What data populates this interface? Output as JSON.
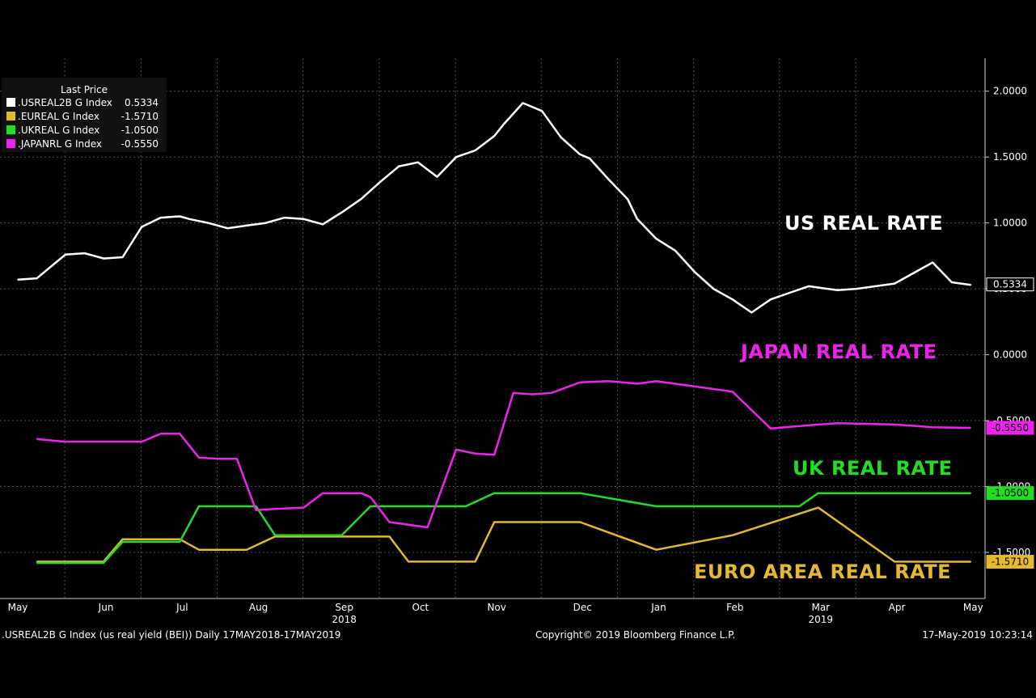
{
  "chart_data": {
    "type": "line",
    "legend_placement": "top-left",
    "grid": true,
    "ylim": [
      -1.85,
      2.25
    ],
    "y_ticks": [
      {
        "value": 2.0,
        "label": "2.0000"
      },
      {
        "value": 1.5,
        "label": "1.5000"
      },
      {
        "value": 1.0,
        "label": "1.0000"
      },
      {
        "value": 0.5,
        "label": "0.5000"
      },
      {
        "value": 0.0,
        "label": "0.0000"
      },
      {
        "value": -0.5,
        "label": "-0.5000"
      },
      {
        "value": -1.0,
        "label": "-1.0000"
      },
      {
        "value": -1.5,
        "label": "-1.5000"
      }
    ],
    "x_ticks": [
      {
        "value": 2018.33,
        "label": "May"
      },
      {
        "value": 2018.42,
        "label": "Jun"
      },
      {
        "value": 2018.5,
        "label": "Jul"
      },
      {
        "value": 2018.58,
        "label": "Aug"
      },
      {
        "value": 2018.67,
        "label": "Sep"
      },
      {
        "value": 2018.75,
        "label": "Oct"
      },
      {
        "value": 2018.83,
        "label": "Nov"
      },
      {
        "value": 2018.92,
        "label": "Dec"
      },
      {
        "value": 2019.0,
        "label": "Jan"
      },
      {
        "value": 2019.08,
        "label": "Feb"
      },
      {
        "value": 2019.17,
        "label": "Mar"
      },
      {
        "value": 2019.25,
        "label": "Apr"
      },
      {
        "value": 2019.33,
        "label": "May"
      }
    ],
    "year_labels": [
      {
        "value": 2018.67,
        "label": "2018"
      },
      {
        "value": 2019.17,
        "label": "2019"
      }
    ],
    "legend_title": "Last Price",
    "series": [
      {
        "name": ".USREAL2B G Index",
        "last_price": "0.5334",
        "color": "#ffffff",
        "annotation": "US REAL RATE",
        "x": [
          2018.33,
          2018.35,
          2018.37,
          2018.38,
          2018.4,
          2018.42,
          2018.44,
          2018.46,
          2018.48,
          2018.5,
          2018.51,
          2018.53,
          2018.55,
          2018.57,
          2018.59,
          2018.61,
          2018.63,
          2018.65,
          2018.67,
          2018.69,
          2018.71,
          2018.73,
          2018.75,
          2018.77,
          2018.79,
          2018.81,
          2018.83,
          2018.84,
          2018.86,
          2018.88,
          2018.9,
          2018.92,
          2018.93,
          2018.95,
          2018.97,
          2018.98,
          2019.0,
          2019.02,
          2019.04,
          2019.06,
          2019.08,
          2019.1,
          2019.12,
          2019.14,
          2019.16,
          2019.17,
          2019.19,
          2019.21,
          2019.23,
          2019.25,
          2019.27,
          2019.29,
          2019.31,
          2019.33
        ],
        "values": [
          0.57,
          0.58,
          0.7,
          0.76,
          0.77,
          0.73,
          0.74,
          0.97,
          1.04,
          1.05,
          1.03,
          1.0,
          0.96,
          0.98,
          1.0,
          1.04,
          1.03,
          0.99,
          1.08,
          1.18,
          1.31,
          1.43,
          1.46,
          1.35,
          1.5,
          1.55,
          1.66,
          1.75,
          1.91,
          1.85,
          1.65,
          1.52,
          1.49,
          1.33,
          1.18,
          1.03,
          0.88,
          0.79,
          0.63,
          0.5,
          0.42,
          0.32,
          0.42,
          0.47,
          0.52,
          0.51,
          0.49,
          0.5,
          0.52,
          0.54,
          0.62,
          0.7,
          0.55,
          0.53
        ]
      },
      {
        "name": ".EUREAL G Index",
        "last_price": "-1.5710",
        "color": "#e5b92d",
        "annotation": "EURO AREA REAL RATE",
        "x": [
          2018.35,
          2018.37,
          2018.4,
          2018.42,
          2018.44,
          2018.46,
          2018.48,
          2018.5,
          2018.52,
          2018.54,
          2018.56,
          2018.57,
          2018.6,
          2018.63,
          2018.65,
          2018.67,
          2018.7,
          2018.72,
          2018.74,
          2018.76,
          2018.79,
          2018.81,
          2018.83,
          2018.85,
          2018.87,
          2018.89,
          2018.92,
          2019.0,
          2019.08,
          2019.17,
          2019.25,
          2019.33
        ],
        "values": [
          -1.57,
          -1.57,
          -1.57,
          -1.57,
          -1.4,
          -1.4,
          -1.4,
          -1.4,
          -1.48,
          -1.48,
          -1.48,
          -1.48,
          -1.38,
          -1.38,
          -1.38,
          -1.38,
          -1.38,
          -1.38,
          -1.57,
          -1.57,
          -1.57,
          -1.57,
          -1.27,
          -1.27,
          -1.27,
          -1.27,
          -1.27,
          -1.48,
          -1.37,
          -1.16,
          -1.57,
          -1.571
        ]
      },
      {
        "name": ".UKREAL G Index",
        "last_price": "-1.0500",
        "color": "#22dd22",
        "annotation": "UK REAL RATE",
        "x": [
          2018.35,
          2018.37,
          2018.4,
          2018.42,
          2018.44,
          2018.46,
          2018.48,
          2018.5,
          2018.52,
          2018.54,
          2018.56,
          2018.58,
          2018.6,
          2018.63,
          2018.65,
          2018.67,
          2018.7,
          2018.72,
          2018.75,
          2018.78,
          2018.8,
          2018.83,
          2018.85,
          2018.87,
          2018.9,
          2018.92,
          2019.0,
          2019.08,
          2019.15,
          2019.17,
          2019.25,
          2019.33
        ],
        "values": [
          -1.58,
          -1.58,
          -1.58,
          -1.58,
          -1.42,
          -1.42,
          -1.42,
          -1.42,
          -1.15,
          -1.15,
          -1.15,
          -1.15,
          -1.37,
          -1.37,
          -1.37,
          -1.37,
          -1.15,
          -1.15,
          -1.15,
          -1.15,
          -1.15,
          -1.05,
          -1.05,
          -1.05,
          -1.05,
          -1.05,
          -1.15,
          -1.15,
          -1.15,
          -1.05,
          -1.05,
          -1.05
        ]
      },
      {
        "name": ".JAPANRL G Index",
        "last_price": "-0.5550",
        "color": "#ee22ee",
        "annotation": "JAPAN REAL RATE",
        "x": [
          2018.35,
          2018.38,
          2018.42,
          2018.46,
          2018.48,
          2018.5,
          2018.52,
          2018.54,
          2018.56,
          2018.58,
          2018.6,
          2018.63,
          2018.65,
          2018.67,
          2018.69,
          2018.7,
          2018.72,
          2018.74,
          2018.76,
          2018.79,
          2018.81,
          2018.83,
          2018.85,
          2018.87,
          2018.89,
          2018.92,
          2018.95,
          2018.98,
          2019.0,
          2019.04,
          2019.08,
          2019.12,
          2019.17,
          2019.19,
          2019.25,
          2019.29,
          2019.33
        ],
        "values": [
          -0.64,
          -0.66,
          -0.66,
          -0.66,
          -0.6,
          -0.6,
          -0.78,
          -0.79,
          -0.79,
          -1.18,
          -1.17,
          -1.16,
          -1.05,
          -1.05,
          -1.05,
          -1.08,
          -1.27,
          -1.29,
          -1.31,
          -0.72,
          -0.75,
          -0.76,
          -0.29,
          -0.3,
          -0.29,
          -0.21,
          -0.2,
          -0.22,
          -0.2,
          -0.24,
          -0.28,
          -0.56,
          -0.53,
          -0.52,
          -0.53,
          -0.55,
          -0.555
        ]
      }
    ]
  },
  "footer": {
    "left": ".USREAL2B G Index (us real yield (BEI))  Daily 17MAY2018-17MAY2019",
    "center": "Copyright© 2019 Bloomberg Finance L.P.",
    "right": "17-May-2019 10:23:14"
  }
}
